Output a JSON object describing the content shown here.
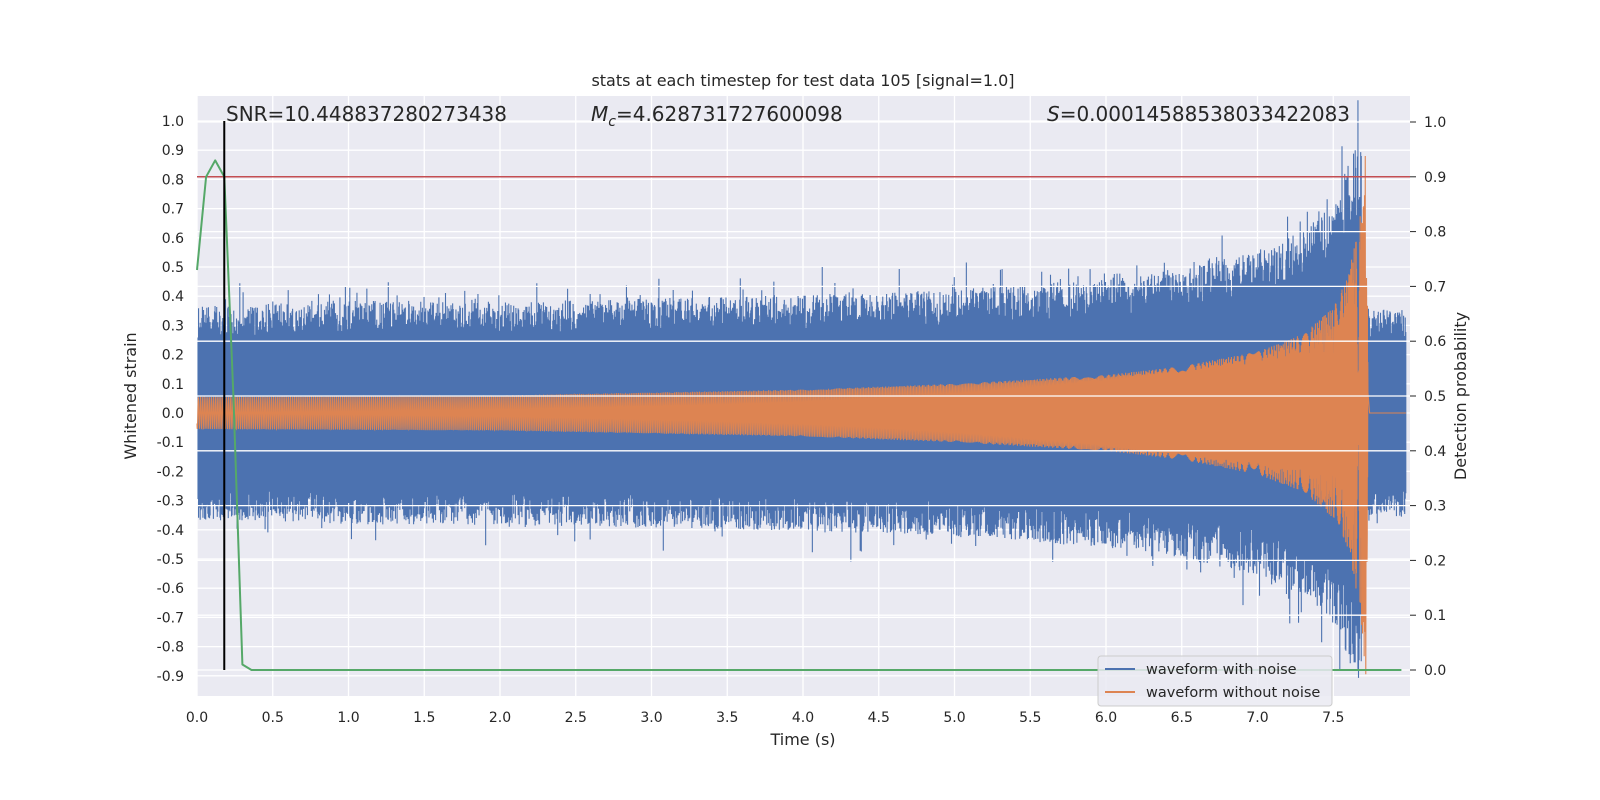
{
  "chart_data": {
    "type": "line",
    "title": "stats at each timestep for test data 105 [signal=1.0]",
    "xlabel": "Time (s)",
    "ylabel": "Whitened strain",
    "y2label": "Detection probability",
    "xlim": [
      0.0,
      8.0
    ],
    "ylim": [
      -1.0,
      1.04
    ],
    "y2lim": [
      -0.05,
      1.03
    ],
    "x_ticks": [
      "0.0",
      "0.5",
      "1.0",
      "1.5",
      "2.0",
      "2.5",
      "3.0",
      "3.5",
      "4.0",
      "4.5",
      "5.0",
      "5.5",
      "6.0",
      "6.5",
      "7.0",
      "7.5"
    ],
    "y_ticks": [
      "1.0",
      "0.9",
      "0.8",
      "0.7",
      "0.6",
      "0.5",
      "0.4",
      "0.3",
      "0.2",
      "0.1",
      "0.0",
      "-0.1",
      "-0.2",
      "-0.3",
      "-0.4",
      "-0.5",
      "-0.6",
      "-0.7",
      "-0.8",
      "-0.9"
    ],
    "y2_ticks": [
      "1.0",
      "0.9",
      "0.8",
      "0.7",
      "0.6",
      "0.5",
      "0.4",
      "0.3",
      "0.2",
      "0.1",
      "0.0"
    ],
    "grid": true,
    "legend_position": "bottom-right",
    "annotations": {
      "snr": "SNR=10.448837280273438",
      "mc_symbol": "M",
      "mc_sub": "c",
      "mc_value": "=4.628731727600098",
      "s_symbol": "S",
      "s_value": "=0.00014588538033422083"
    },
    "series": [
      {
        "name": "waveform with noise",
        "color": "#4c72b0",
        "axis": "left",
        "envelope_x": [
          0.0,
          1.0,
          2.0,
          3.0,
          4.0,
          5.0,
          6.0,
          6.5,
          7.0,
          7.3,
          7.5,
          7.6,
          7.68,
          7.72,
          7.75,
          7.8,
          8.0
        ],
        "envelope_y": [
          0.38,
          0.4,
          0.4,
          0.41,
          0.42,
          0.44,
          0.48,
          0.52,
          0.58,
          0.65,
          0.75,
          0.9,
          1.0,
          0.4,
          0.37,
          0.37,
          0.37
        ],
        "end_time": 7.98
      },
      {
        "name": "waveform without noise",
        "color": "#dd8452",
        "axis": "left",
        "amplitude_x": [
          0.0,
          2.0,
          4.0,
          5.0,
          6.0,
          6.5,
          7.0,
          7.3,
          7.5,
          7.6,
          7.68,
          7.72,
          7.73
        ],
        "amplitude_y": [
          0.055,
          0.06,
          0.08,
          0.1,
          0.13,
          0.16,
          0.21,
          0.27,
          0.36,
          0.47,
          0.68,
          0.95,
          0.0
        ],
        "end_time": 7.98
      },
      {
        "name": "",
        "color": "#55a868",
        "axis": "right",
        "x": [
          0.0,
          0.06,
          0.12,
          0.18,
          0.24,
          0.3,
          0.36,
          0.5,
          1.0,
          2.0,
          3.0,
          4.0,
          5.0,
          6.0,
          7.0,
          7.95
        ],
        "y": [
          0.73,
          0.9,
          0.93,
          0.9,
          0.5,
          0.01,
          0.0,
          0.0,
          0.0,
          0.0,
          0.0,
          0.0,
          0.0,
          0.0,
          0.0,
          0.0
        ]
      }
    ],
    "threshold": {
      "axis": "right",
      "value": 0.9,
      "color": "#c44e52"
    },
    "marker_time": 0.18,
    "marker_color": "#000000"
  }
}
